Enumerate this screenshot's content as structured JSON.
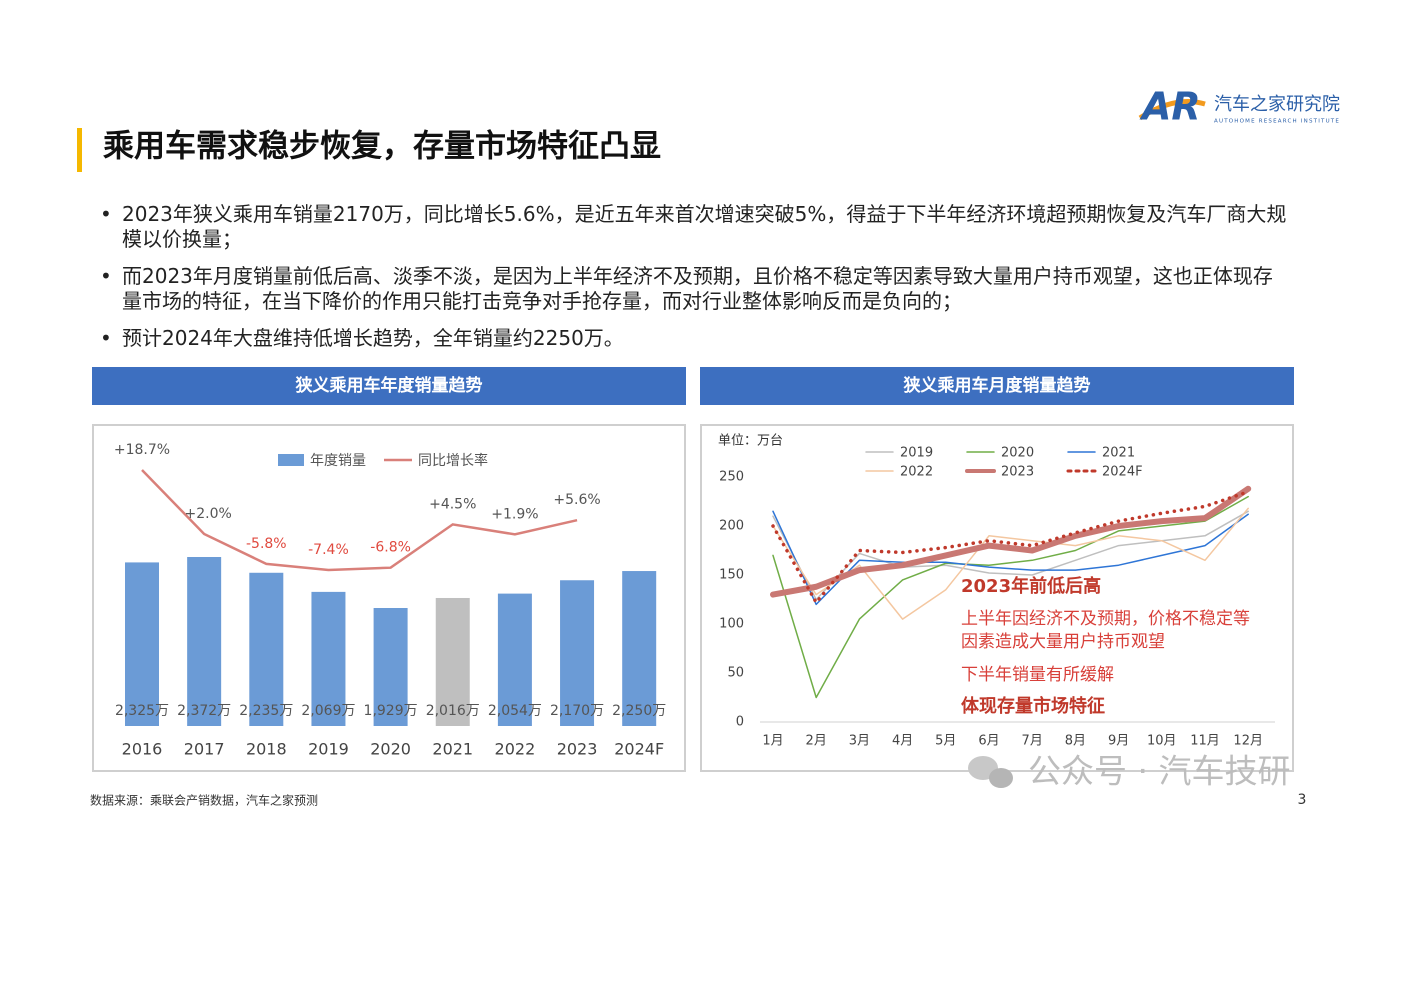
{
  "header": {
    "title": "乘用车需求稳步恢复，存量市场特征凸显",
    "logo_mark": "AR",
    "logo_name": "汽车之家研究院",
    "logo_tagline": "AUTOHOME RESEARCH INSTITUTE"
  },
  "bullets": [
    "2023年狭义乘用车销量2170万，同比增长5.6%，是近五年来首次增速突破5%，得益于下半年经济环境超预期恢复及汽车厂商大规模以价换量；",
    "而2023年月度销量前低后高、淡季不淡，是因为上半年经济不及预期，且价格不稳定等因素导致大量用户持币观望，这也正体现存量市场的特征，在当下降价的作用只能打击竞争对手抢存量，而对行业整体影响反而是负向的；",
    "预计2024年大盘维持低增长趋势，全年销量约2250万。"
  ],
  "chart_data": [
    {
      "type": "bar",
      "title": "狭义乘用车年度销量趋势",
      "categories": [
        "2016",
        "2017",
        "2018",
        "2019",
        "2020",
        "2021",
        "2022",
        "2023",
        "2024F"
      ],
      "series": [
        {
          "name": "年度销量",
          "type": "bar",
          "color": "#6b9bd6",
          "colors": [
            "#6b9bd6",
            "#6b9bd6",
            "#6b9bd6",
            "#6b9bd6",
            "#6b9bd6",
            "#bfbfbf",
            "#6b9bd6",
            "#6b9bd6",
            "#6b9bd6"
          ],
          "values": [
            2325,
            2372,
            2235,
            2069,
            1929,
            2016,
            2054,
            2170,
            2250
          ],
          "value_labels": [
            "2,325万",
            "2,372万",
            "2,235万",
            "2,069万",
            "1,929万",
            "2,016万",
            "2,054万",
            "2,170万",
            "2,250万"
          ]
        },
        {
          "name": "同比增长率",
          "type": "line",
          "color": "#d9807a",
          "values": [
            18.7,
            2.0,
            -5.8,
            -7.4,
            -6.8,
            4.5,
            1.9,
            5.6,
            null
          ],
          "value_labels": [
            "+18.7%",
            "+2.0%",
            "-5.8%",
            "-7.4%",
            "-6.8%",
            "+4.5%",
            "+1.9%",
            "+5.6%",
            null
          ]
        }
      ]
    },
    {
      "type": "line",
      "title": "狭义乘用车月度销量趋势",
      "unit_label": "单位：万台",
      "categories": [
        "1月",
        "2月",
        "3月",
        "4月",
        "5月",
        "6月",
        "7月",
        "8月",
        "9月",
        "10月",
        "11月",
        "12月"
      ],
      "ylim": [
        0,
        250
      ],
      "yticks": [
        0,
        50,
        100,
        150,
        200,
        250
      ],
      "series": [
        {
          "name": "2019",
          "color": "#bfbfbf",
          "line_width": 1.5,
          "values": [
            210,
            125,
            172,
            158,
            160,
            152,
            150,
            165,
            180,
            185,
            190,
            215
          ]
        },
        {
          "name": "2020",
          "color": "#70ad47",
          "line_width": 1.5,
          "values": [
            170,
            25,
            105,
            145,
            162,
            160,
            165,
            175,
            195,
            200,
            205,
            230
          ]
        },
        {
          "name": "2021",
          "color": "#2e75d6",
          "line_width": 1.5,
          "values": [
            215,
            120,
            165,
            163,
            163,
            158,
            155,
            155,
            160,
            170,
            180,
            212
          ]
        },
        {
          "name": "2022",
          "color": "#f4c7a0",
          "line_width": 1.5,
          "values": [
            200,
            130,
            160,
            105,
            135,
            190,
            185,
            180,
            190,
            185,
            165,
            218
          ]
        },
        {
          "name": "2023",
          "color": "#c97873",
          "line_width": 6,
          "values": [
            130,
            138,
            155,
            160,
            170,
            180,
            175,
            190,
            200,
            205,
            208,
            238
          ]
        },
        {
          "name": "2024F",
          "color": "#c0392b",
          "line_width": 3.5,
          "dash": "dotted",
          "values": [
            200,
            122,
            175,
            173,
            178,
            185,
            180,
            193,
            205,
            213,
            220,
            235
          ]
        }
      ],
      "annotations": [
        {
          "text": "2023年前低后高",
          "bold": true
        },
        {
          "text": "上半年因经济不及预期，价格不稳定等",
          "bold": false
        },
        {
          "text": "因素造成大量用户持币观望",
          "bold": false
        },
        {
          "text": "下半年销量有所缓解",
          "bold": false
        },
        {
          "text": "体现存量市场特征",
          "bold": true
        }
      ]
    }
  ],
  "footer": {
    "source": "数据来源：乘联会产销数据，汽车之家预测",
    "page": 3,
    "watermark": "公众号 · 汽车技研"
  }
}
